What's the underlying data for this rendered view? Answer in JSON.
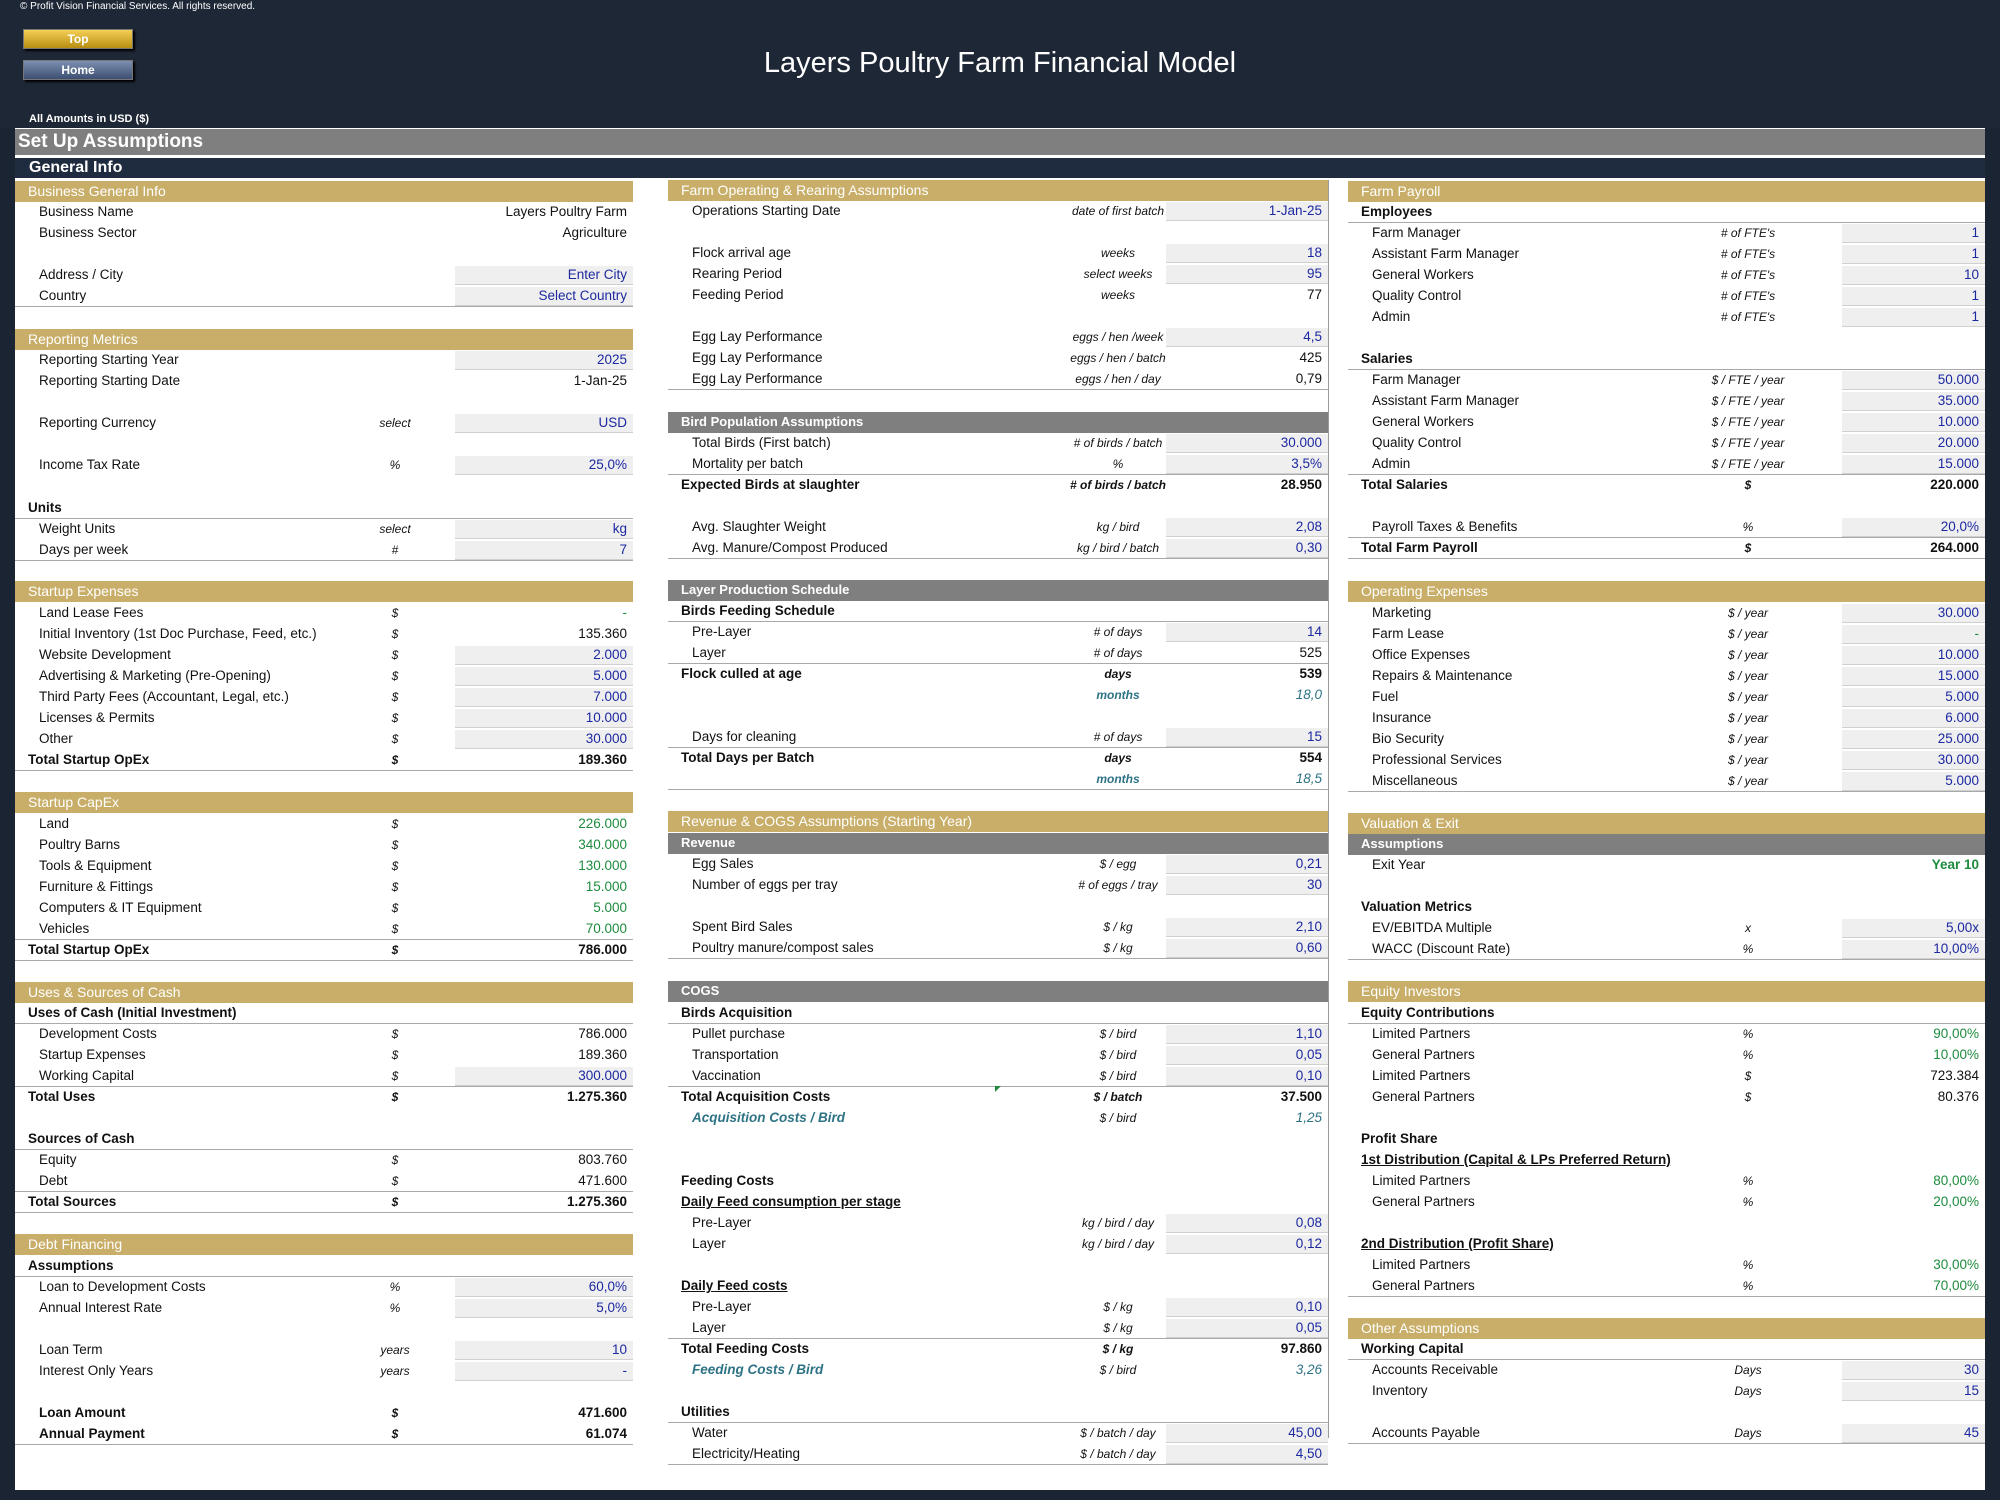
{
  "header": {
    "copyright": "© Profit Vision Financial Services. All rights reserved.",
    "btn_top": "Top",
    "btn_home": "Home",
    "title": "Layers Poultry Farm Financial Model",
    "amounts": "All Amounts in  USD ($)"
  },
  "bars": {
    "setup": "Set Up Assumptions",
    "general": "General Info"
  },
  "col1": {
    "business": {
      "title": "Business General Info",
      "rows": [
        {
          "label": "Business Name",
          "value": "Layers Poultry Farm"
        },
        {
          "label": "Business Sector",
          "value": "Agriculture"
        },
        {
          "label": "Address / City",
          "value": "Enter City"
        },
        {
          "label": "Country",
          "value": "Select Country"
        }
      ]
    },
    "reporting": {
      "title": "Reporting Metrics",
      "rows": [
        {
          "label": "Reporting Starting Year",
          "unit": "",
          "value": "2025"
        },
        {
          "label": "Reporting Starting Date",
          "unit": "",
          "value": "1-Jan-25"
        },
        {
          "label": "Reporting Currency",
          "unit": "select",
          "value": "USD"
        },
        {
          "label": "Income Tax Rate",
          "unit": "%",
          "value": "25,0%"
        }
      ],
      "units_header": "Units",
      "units_rows": [
        {
          "label": "Weight Units",
          "unit": "select",
          "value": "kg"
        },
        {
          "label": "Days per week",
          "unit": "#",
          "value": "7"
        }
      ]
    },
    "startup_expenses": {
      "title": "Startup Expenses",
      "rows": [
        {
          "label": "Land Lease Fees",
          "unit": "$",
          "value": "-"
        },
        {
          "label": "Initial Inventory (1st Doc Purchase, Feed, etc.)",
          "unit": "$",
          "value": "135.360"
        },
        {
          "label": "Website Development",
          "unit": "$",
          "value": "2.000"
        },
        {
          "label": "Advertising & Marketing (Pre-Opening)",
          "unit": "$",
          "value": "5.000"
        },
        {
          "label": "Third Party Fees (Accountant, Legal, etc.)",
          "unit": "$",
          "value": "7.000"
        },
        {
          "label": "Licenses & Permits",
          "unit": "$",
          "value": "10.000"
        },
        {
          "label": "Other",
          "unit": "$",
          "value": "30.000"
        }
      ],
      "total": {
        "label": "Total Startup OpEx",
        "unit": "$",
        "value": "189.360"
      }
    },
    "startup_capex": {
      "title": "Startup CapEx",
      "rows": [
        {
          "label": "Land",
          "unit": "$",
          "value": "226.000"
        },
        {
          "label": "Poultry Barns",
          "unit": "$",
          "value": "340.000"
        },
        {
          "label": "Tools & Equipment",
          "unit": "$",
          "value": "130.000"
        },
        {
          "label": "Furniture & Fittings",
          "unit": "$",
          "value": "15.000"
        },
        {
          "label": "Computers & IT Equipment",
          "unit": "$",
          "value": "5.000"
        },
        {
          "label": "Vehicles",
          "unit": "$",
          "value": "70.000"
        }
      ],
      "total": {
        "label": "Total Startup OpEx",
        "unit": "$",
        "value": "786.000"
      }
    },
    "uses_sources": {
      "title": "Uses & Sources of Cash",
      "uses_header": "Uses of Cash (Initial Investment)",
      "uses": [
        {
          "label": "Development Costs",
          "unit": "$",
          "value": "786.000"
        },
        {
          "label": "Startup Expenses",
          "unit": "$",
          "value": "189.360"
        },
        {
          "label": "Working Capital",
          "unit": "$",
          "value": "300.000"
        }
      ],
      "uses_total": {
        "label": "Total Uses",
        "unit": "$",
        "value": "1.275.360"
      },
      "sources_header": "Sources of Cash",
      "sources": [
        {
          "label": "Equity",
          "unit": "$",
          "value": "803.760"
        },
        {
          "label": "Debt",
          "unit": "$",
          "value": "471.600"
        }
      ],
      "sources_total": {
        "label": "Total Sources",
        "unit": "$",
        "value": "1.275.360"
      }
    },
    "debt": {
      "title": "Debt Financing",
      "assumptions_header": "Assumptions",
      "rows": [
        {
          "label": "Loan to Development Costs",
          "unit": "%",
          "value": "60,0%"
        },
        {
          "label": "Annual Interest Rate",
          "unit": "%",
          "value": "5,0%"
        },
        {
          "label": "Loan Term",
          "unit": "years",
          "value": "10"
        },
        {
          "label": "Interest Only Years",
          "unit": "years",
          "value": "-"
        }
      ],
      "loan_amount": {
        "label": "Loan Amount",
        "unit": "$",
        "value": "471.600"
      },
      "annual_payment": {
        "label": "Annual Payment",
        "unit": "$",
        "value": "61.074"
      }
    }
  },
  "col2": {
    "farm_ops": {
      "title": "Farm Operating & Rearing Assumptions",
      "start": {
        "label": "Operations Starting Date",
        "unit": "date of first batch",
        "value": "1-Jan-25"
      },
      "rows": [
        {
          "label": "Flock arrival age",
          "unit": "weeks",
          "value": "18"
        },
        {
          "label": "Rearing Period",
          "unit": "select weeks",
          "value": "95"
        },
        {
          "label": "Feeding Period",
          "unit": "weeks",
          "value": "77"
        },
        {
          "label": "Egg Lay Performance",
          "unit": "eggs / hen /week",
          "value": "4,5"
        },
        {
          "label": "Egg Lay Performance",
          "unit": "eggs / hen / batch",
          "value": "425"
        },
        {
          "label": "Egg Lay Performance",
          "unit": "eggs / hen / day",
          "value": "0,79"
        }
      ]
    },
    "bird_pop": {
      "title": "Bird Population Assumptions",
      "rows": [
        {
          "label": "Total Birds (First batch)",
          "unit": "# of birds / batch",
          "value": "30.000"
        },
        {
          "label": "Mortality per batch",
          "unit": "%",
          "value": "3,5%"
        }
      ],
      "expected": {
        "label": "Expected Birds at slaughter",
        "unit": "# of birds / batch",
        "value": "28.950"
      },
      "rows2": [
        {
          "label": "Avg. Slaughter Weight",
          "unit": "kg / bird",
          "value": "2,08"
        },
        {
          "label": "Avg. Manure/Compost Produced",
          "unit": "kg / bird / batch",
          "value": "0,30"
        }
      ]
    },
    "schedule": {
      "title": "Layer Production Schedule",
      "header": "Birds Feeding Schedule",
      "rows": [
        {
          "label": "Pre-Layer",
          "unit": "# of days",
          "value": "14"
        },
        {
          "label": "Layer",
          "unit": "# of days",
          "value": "525"
        }
      ],
      "culled": {
        "label": "Flock culled at age",
        "unit": "days",
        "value": "539"
      },
      "culled_months": {
        "unit": "months",
        "value": "18,0"
      },
      "cleaning": {
        "label": "Days for cleaning",
        "unit": "# of days",
        "value": "15"
      },
      "total": {
        "label": "Total Days per Batch",
        "unit": "days",
        "value": "554"
      },
      "total_months": {
        "unit": "months",
        "value": "18,5"
      }
    },
    "revenue": {
      "title": "Revenue & COGS Assumptions (Starting Year)",
      "sub": "Revenue",
      "rows": [
        {
          "label": "Egg Sales",
          "unit": "$ / egg",
          "value": "0,21"
        },
        {
          "label": "Number of eggs per tray",
          "unit": "# of eggs / tray",
          "value": "30"
        },
        {
          "label": "Spent Bird Sales",
          "unit": "$ / kg",
          "value": "2,10"
        },
        {
          "label": "Poultry manure/compost sales",
          "unit": "$ / kg",
          "value": "0,60"
        }
      ]
    },
    "cogs": {
      "title": "COGS",
      "acq_header": "Birds Acquisition",
      "acq": [
        {
          "label": "Pullet purchase",
          "unit": "$ / bird",
          "value": "1,10"
        },
        {
          "label": "Transportation",
          "unit": "$ / bird",
          "value": "0,05"
        },
        {
          "label": "Vaccination",
          "unit": "$ / bird",
          "value": "0,10"
        }
      ],
      "acq_total": {
        "label": "Total Acquisition Costs",
        "unit": "$ / batch",
        "value": "37.500"
      },
      "acq_per_bird": {
        "label": "Acquisition Costs / Bird",
        "unit": "$ / bird",
        "value": "1,25"
      },
      "feed_header": "Feeding Costs",
      "feed_cons_header": "Daily Feed consumption per stage",
      "feed_cons": [
        {
          "label": "Pre-Layer",
          "unit": "kg / bird / day",
          "value": "0,08"
        },
        {
          "label": "Layer",
          "unit": "kg / bird / day",
          "value": "0,12"
        }
      ],
      "feed_cost_header": "Daily Feed costs",
      "feed_cost": [
        {
          "label": "Pre-Layer",
          "unit": "$ / kg",
          "value": "0,10"
        },
        {
          "label": "Layer",
          "unit": "$ / kg",
          "value": "0,05"
        }
      ],
      "feed_total": {
        "label": "Total Feeding Costs",
        "unit": "$ / kg",
        "value": "97.860"
      },
      "feed_per_bird": {
        "label": "Feeding Costs / Bird",
        "unit": "$ / bird",
        "value": "3,26"
      },
      "util_header": "Utilities",
      "util": [
        {
          "label": "Water",
          "unit": "$ / batch / day",
          "value": "45,00"
        },
        {
          "label": "Electricity/Heating",
          "unit": "$ / batch / day",
          "value": "4,50"
        }
      ]
    }
  },
  "col3": {
    "payroll": {
      "title": "Farm Payroll",
      "emp_header": "Employees",
      "employees": [
        {
          "label": "Farm Manager",
          "unit": "# of FTE's",
          "value": "1"
        },
        {
          "label": "Assistant Farm Manager",
          "unit": "# of FTE's",
          "value": "1"
        },
        {
          "label": "General Workers",
          "unit": "# of FTE's",
          "value": "10"
        },
        {
          "label": "Quality Control",
          "unit": "# of FTE's",
          "value": "1"
        },
        {
          "label": "Admin",
          "unit": "# of FTE's",
          "value": "1"
        }
      ],
      "sal_header": "Salaries",
      "salaries": [
        {
          "label": "Farm Manager",
          "unit": "$ / FTE / year",
          "value": "50.000"
        },
        {
          "label": "Assistant Farm Manager",
          "unit": "$ / FTE / year",
          "value": "35.000"
        },
        {
          "label": "General Workers",
          "unit": "$ / FTE / year",
          "value": "10.000"
        },
        {
          "label": "Quality Control",
          "unit": "$ / FTE / year",
          "value": "20.000"
        },
        {
          "label": "Admin",
          "unit": "$ / FTE / year",
          "value": "15.000"
        }
      ],
      "sal_total": {
        "label": "Total Salaries",
        "unit": "$",
        "value": "220.000"
      },
      "taxes": {
        "label": "Payroll Taxes & Benefits",
        "unit": "%",
        "value": "20,0%"
      },
      "total": {
        "label": "Total Farm Payroll",
        "unit": "$",
        "value": "264.000"
      }
    },
    "opex": {
      "title": "Operating Expenses",
      "rows": [
        {
          "label": "Marketing",
          "unit": "$ / year",
          "value": "30.000"
        },
        {
          "label": "Farm Lease",
          "unit": "$ / year",
          "value": "-"
        },
        {
          "label": "Office Expenses",
          "unit": "$ / year",
          "value": "10.000"
        },
        {
          "label": "Repairs & Maintenance",
          "unit": "$ / year",
          "value": "15.000"
        },
        {
          "label": "Fuel",
          "unit": "$ / year",
          "value": "5.000"
        },
        {
          "label": "Insurance",
          "unit": "$ / year",
          "value": "6.000"
        },
        {
          "label": "Bio Security",
          "unit": "$ / year",
          "value": "25.000"
        },
        {
          "label": "Professional Services",
          "unit": "$ / year",
          "value": "30.000"
        },
        {
          "label": "Miscellaneous",
          "unit": "$ / year",
          "value": "5.000"
        }
      ]
    },
    "valuation": {
      "title": "Valuation & Exit",
      "sub": "Assumptions",
      "exit": {
        "label": "Exit Year",
        "value": "Year 10"
      },
      "metrics_header": "Valuation Metrics",
      "rows": [
        {
          "label": "EV/EBITDA Multiple",
          "unit": "x",
          "value": "5,00x"
        },
        {
          "label": "WACC (Discount Rate)",
          "unit": "%",
          "value": "10,00%"
        }
      ]
    },
    "equity": {
      "title": "Equity Investors",
      "contrib_header": "Equity Contributions",
      "contrib": [
        {
          "label": "Limited Partners",
          "unit": "%",
          "value": "90,00%"
        },
        {
          "label": "General Partners",
          "unit": "%",
          "value": "10,00%"
        },
        {
          "label": "Limited Partners",
          "unit": "$",
          "value": "723.384"
        },
        {
          "label": "General Partners",
          "unit": "$",
          "value": "80.376"
        }
      ],
      "profit_header": "Profit Share",
      "dist1_header": "1st Distribution (Capital & LPs Preferred Return)",
      "dist1": [
        {
          "label": "Limited Partners",
          "unit": "%",
          "value": "80,00%"
        },
        {
          "label": "General Partners",
          "unit": "%",
          "value": "20,00%"
        }
      ],
      "dist2_header": "2nd Distribution (Profit Share)",
      "dist2": [
        {
          "label": "Limited Partners",
          "unit": "%",
          "value": "30,00%"
        },
        {
          "label": "General Partners",
          "unit": "%",
          "value": "70,00%"
        }
      ]
    },
    "other": {
      "title": "Other Assumptions",
      "wc_header": "Working Capital",
      "rows": [
        {
          "label": "Accounts Receivable",
          "unit": "Days",
          "value": "30"
        },
        {
          "label": "Inventory",
          "unit": "Days",
          "value": "15"
        },
        {
          "label": "Accounts Payable",
          "unit": "Days",
          "value": "45"
        }
      ]
    }
  }
}
